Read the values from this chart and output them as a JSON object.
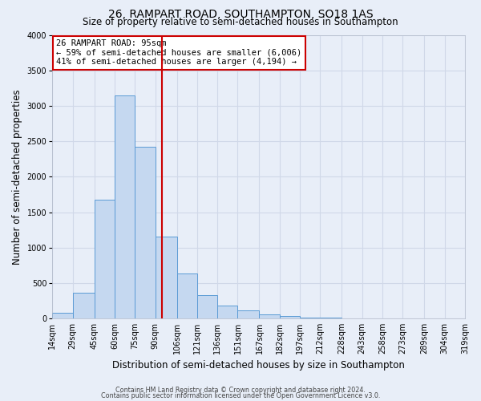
{
  "title": "26, RAMPART ROAD, SOUTHAMPTON, SO18 1AS",
  "subtitle": "Size of property relative to semi-detached houses in Southampton",
  "xlabel": "Distribution of semi-detached houses by size in Southampton",
  "ylabel": "Number of semi-detached properties",
  "footnote1": "Contains HM Land Registry data © Crown copyright and database right 2024.",
  "footnote2": "Contains public sector information licensed under the Open Government Licence v3.0.",
  "bin_labels": [
    "14sqm",
    "29sqm",
    "45sqm",
    "60sqm",
    "75sqm",
    "90sqm",
    "106sqm",
    "121sqm",
    "136sqm",
    "151sqm",
    "167sqm",
    "182sqm",
    "197sqm",
    "212sqm",
    "228sqm",
    "243sqm",
    "258sqm",
    "273sqm",
    "289sqm",
    "304sqm",
    "319sqm"
  ],
  "bar_values": [
    75,
    360,
    1680,
    3150,
    2430,
    1160,
    630,
    330,
    185,
    110,
    55,
    30,
    15,
    5,
    2,
    1,
    0,
    0,
    0,
    0
  ],
  "bin_edges": [
    14,
    29,
    45,
    60,
    75,
    90,
    106,
    121,
    136,
    151,
    167,
    182,
    197,
    212,
    228,
    243,
    258,
    273,
    289,
    304,
    319
  ],
  "bar_color": "#c5d8f0",
  "bar_edge_color": "#5b9bd5",
  "vline_x": 95,
  "vline_color": "#cc0000",
  "ylim": [
    0,
    4000
  ],
  "yticks": [
    0,
    500,
    1000,
    1500,
    2000,
    2500,
    3000,
    3500,
    4000
  ],
  "annotation_title": "26 RAMPART ROAD: 95sqm",
  "annotation_line1": "← 59% of semi-detached houses are smaller (6,006)",
  "annotation_line2": "41% of semi-detached houses are larger (4,194) →",
  "annotation_box_color": "#ffffff",
  "annotation_box_edge": "#cc0000",
  "bg_color": "#e8eef8",
  "grid_color": "#d0d8e8",
  "title_fontsize": 10,
  "subtitle_fontsize": 8.5,
  "axis_label_fontsize": 8.5,
  "tick_fontsize": 7,
  "annotation_fontsize": 7.5
}
